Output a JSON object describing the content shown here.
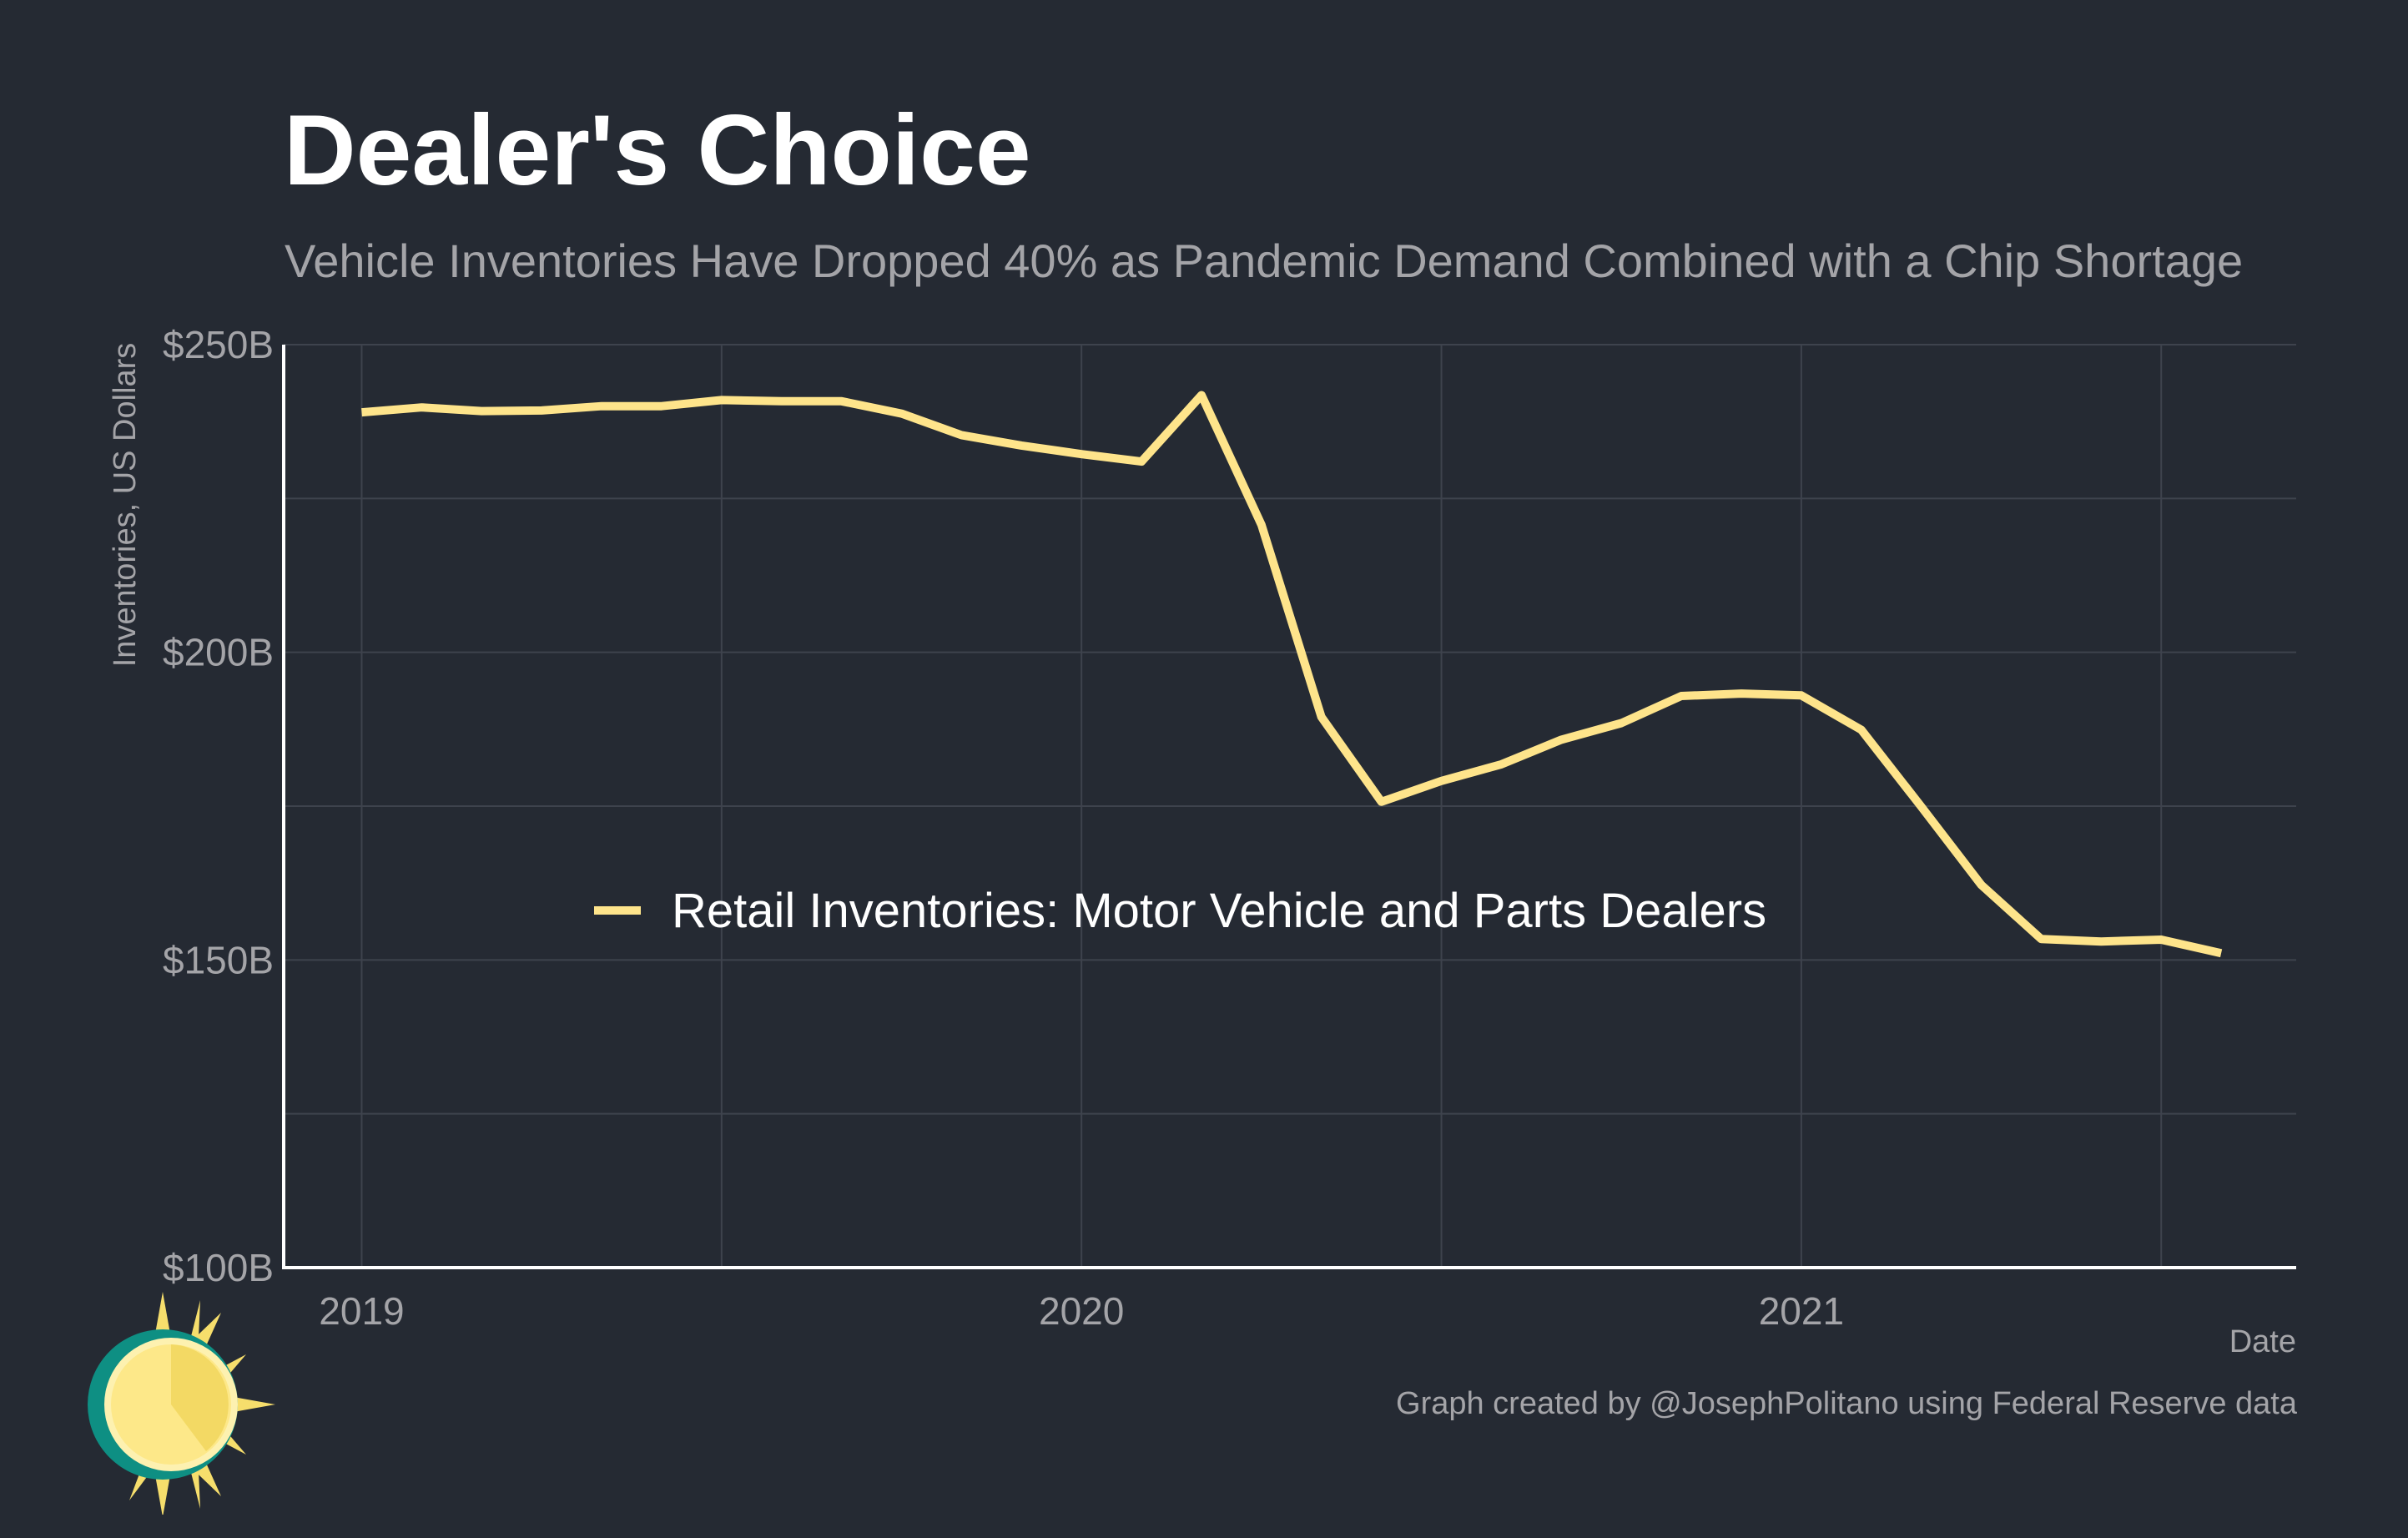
{
  "title": "Dealer's Choice",
  "subtitle": "Vehicle Inventories Have Dropped 40% as Pandemic Demand Combined with a Chip Shortage",
  "caption": "Graph created by @JosephPolitano using Federal Reserve data",
  "colors": {
    "background": "#252a33",
    "line": "#fee48b",
    "grid": "#3e434d",
    "axis": "#ffffff",
    "muted_text": "#a4a4a8"
  },
  "logo": {
    "icon": "sun-logo-icon"
  },
  "chart_data": {
    "type": "line",
    "xlabel": "Date",
    "ylabel": "Inventories, US Dollars",
    "ylim": [
      100,
      250
    ],
    "y_unit": "billions of US dollars",
    "y_ticks": [
      100,
      150,
      200,
      250
    ],
    "y_tick_labels": [
      "$100B",
      "$150B",
      "$200B",
      "$250B"
    ],
    "x_ticks": [
      "2019-01",
      "2020-01",
      "2021-01"
    ],
    "x_tick_labels": [
      "2019",
      "2020",
      "2021"
    ],
    "x_minor_ticks": [
      "2019-07",
      "2020-07",
      "2021-07"
    ],
    "grid": true,
    "legend": {
      "placement": "center",
      "entries": [
        "Retail Inventories: Motor Vehicle and Parts Dealers"
      ]
    },
    "series": [
      {
        "name": "Retail Inventories: Motor Vehicle and Parts Dealers",
        "x": [
          "2019-01",
          "2019-02",
          "2019-03",
          "2019-04",
          "2019-05",
          "2019-06",
          "2019-07",
          "2019-08",
          "2019-09",
          "2019-10",
          "2019-11",
          "2019-12",
          "2020-01",
          "2020-02",
          "2020-03",
          "2020-04",
          "2020-05",
          "2020-06",
          "2020-07",
          "2020-08",
          "2020-09",
          "2020-10",
          "2020-11",
          "2020-12",
          "2021-01",
          "2021-02",
          "2021-03",
          "2021-04",
          "2021-05",
          "2021-06",
          "2021-07",
          "2021-08"
        ],
        "values": [
          239.0,
          239.8,
          239.2,
          239.3,
          240.0,
          240.0,
          241.0,
          240.8,
          240.8,
          238.8,
          235.3,
          233.6,
          232.2,
          231.0,
          241.8,
          220.7,
          189.5,
          175.7,
          179.1,
          181.8,
          185.8,
          188.5,
          192.9,
          193.3,
          193.0,
          187.4,
          174.9,
          162.2,
          153.4,
          153.0,
          153.3,
          151.1
        ]
      }
    ]
  }
}
